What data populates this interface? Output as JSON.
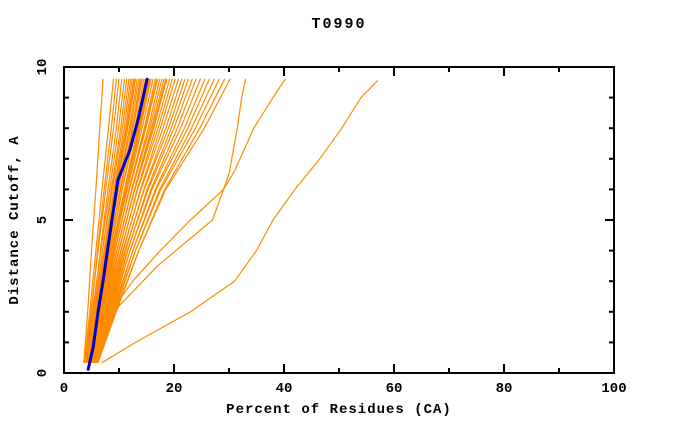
{
  "chart_data": {
    "type": "line",
    "title": "T0990",
    "xlabel": "Percent of Residues (CA)",
    "ylabel": "Distance Cutoff, A",
    "xlim": [
      0,
      100
    ],
    "ylim": [
      0,
      10
    ],
    "xticks": {
      "major": [
        0,
        20,
        40,
        60,
        80,
        100
      ],
      "minor_step": 10
    },
    "yticks": {
      "major": [
        0,
        5,
        10
      ],
      "minor_step": 1
    },
    "grid": false,
    "legend": "none",
    "colors": {
      "models": "#ff8c00",
      "highlight": "#0000cd",
      "axis": "#000000",
      "background": "#ffffff"
    },
    "bundle_y_levels": [
      0.35,
      2,
      4,
      6,
      8,
      9.6
    ],
    "model_curves_x": [
      [
        3.6,
        4.3,
        5.0,
        5.8,
        6.5,
        7.1
      ],
      [
        3.7,
        4.7,
        5.8,
        6.9,
        8.1,
        9.0
      ],
      [
        4.0,
        5.0,
        6.1,
        7.3,
        8.6,
        9.5
      ],
      [
        3.8,
        4.9,
        6.2,
        7.6,
        9.0,
        10.0
      ],
      [
        4.2,
        5.3,
        6.6,
        8.0,
        9.5,
        10.5
      ],
      [
        4.0,
        5.2,
        6.7,
        8.3,
        9.9,
        11.0
      ],
      [
        4.4,
        5.6,
        7.0,
        8.6,
        10.3,
        11.4
      ],
      [
        4.1,
        5.4,
        7.0,
        8.8,
        10.6,
        11.8
      ],
      [
        4.5,
        5.8,
        7.3,
        9.1,
        10.9,
        12.1
      ],
      [
        4.3,
        5.6,
        7.3,
        9.2,
        11.2,
        12.4
      ],
      [
        4.6,
        6.0,
        7.6,
        9.5,
        11.4,
        12.7
      ],
      [
        4.35,
        5.75,
        7.4,
        9.3,
        11.5,
        12.9
      ],
      [
        4.2,
        5.7,
        7.5,
        9.5,
        11.6,
        13.0
      ],
      [
        4.7,
        6.1,
        7.8,
        9.8,
        11.9,
        13.3
      ],
      [
        4.4,
        5.9,
        7.8,
        9.9,
        12.1,
        13.6
      ],
      [
        4.8,
        6.3,
        8.1,
        10.2,
        12.4,
        13.9
      ],
      [
        4.6,
        6.2,
        8.1,
        10.25,
        12.5,
        14.0
      ],
      [
        4.5,
        6.1,
        8.0,
        10.3,
        12.6,
        14.2
      ],
      [
        4.9,
        6.5,
        8.4,
        10.6,
        12.9,
        14.5
      ],
      [
        4.6,
        6.3,
        8.3,
        10.6,
        13.1,
        14.8
      ],
      [
        5.0,
        6.7,
        8.7,
        11.0,
        13.4,
        15.1
      ],
      [
        4.7,
        6.5,
        8.6,
        11.0,
        13.6,
        15.4
      ],
      [
        4.85,
        6.6,
        8.8,
        11.2,
        13.75,
        15.6
      ],
      [
        5.1,
        6.9,
        9.0,
        11.4,
        13.9,
        15.8
      ],
      [
        4.8,
        6.7,
        8.9,
        11.5,
        14.2,
        16.2
      ],
      [
        5.2,
        7.1,
        9.3,
        11.8,
        14.6,
        16.6
      ],
      [
        5.05,
        7.0,
        9.25,
        11.85,
        14.75,
        16.9
      ],
      [
        4.9,
        6.9,
        9.2,
        11.9,
        14.9,
        17.0
      ],
      [
        5.3,
        7.3,
        9.6,
        12.3,
        15.3,
        17.4
      ],
      [
        5.0,
        7.1,
        9.6,
        12.4,
        15.6,
        17.8
      ],
      [
        5.4,
        7.5,
        10.0,
        12.8,
        15.9,
        18.2
      ],
      [
        5.25,
        7.4,
        9.95,
        12.85,
        16.1,
        18.5
      ],
      [
        5.1,
        7.3,
        9.9,
        12.9,
        16.3,
        18.7
      ],
      [
        5.5,
        7.8,
        10.4,
        13.3,
        16.7,
        19.2
      ],
      [
        5.2,
        7.6,
        10.3,
        13.4,
        17.1,
        19.7
      ],
      [
        5.6,
        8.0,
        10.8,
        13.9,
        17.5,
        20.2
      ],
      [
        5.3,
        7.8,
        10.7,
        14.0,
        18.0,
        20.8
      ],
      [
        5.7,
        8.2,
        11.2,
        14.5,
        18.5,
        21.4
      ],
      [
        5.4,
        8.0,
        11.1,
        14.6,
        19.0,
        22.0
      ],
      [
        5.8,
        8.5,
        11.6,
        15.1,
        19.5,
        22.6
      ],
      [
        5.5,
        8.3,
        11.5,
        15.3,
        20.0,
        23.3
      ],
      [
        5.9,
        8.7,
        12.0,
        15.8,
        20.6,
        24.0
      ],
      [
        5.6,
        8.5,
        12.0,
        16.0,
        21.2,
        24.8
      ],
      [
        6.0,
        9.0,
        12.5,
        16.6,
        21.9,
        25.6
      ],
      [
        5.7,
        8.8,
        12.5,
        16.8,
        22.5,
        26.4
      ],
      [
        6.1,
        9.2,
        13.0,
        17.4,
        23.2,
        27.3
      ],
      [
        5.8,
        9.0,
        13.0,
        17.6,
        23.9,
        28.2
      ],
      [
        6.2,
        9.5,
        13.6,
        18.3,
        24.7,
        29.2
      ],
      [
        5.9,
        9.3,
        13.6,
        18.5,
        25.5,
        30.2
      ]
    ],
    "special_curves": [
      {
        "name": "model-outlier-far",
        "y": [
          0.35,
          1,
          2,
          3,
          4,
          5,
          6,
          7,
          8,
          9,
          9.55
        ],
        "x": [
          7,
          13,
          23,
          31,
          35,
          38,
          42,
          46.5,
          50.5,
          54,
          57
        ]
      },
      {
        "name": "model-outlier-mid",
        "y": [
          0.35,
          1,
          2,
          3,
          4,
          5,
          6,
          6.6,
          8,
          9,
          9.6
        ],
        "x": [
          5.5,
          6.5,
          8.5,
          12.5,
          17.5,
          23,
          29,
          31,
          34.5,
          38,
          40.2
        ]
      },
      {
        "name": "model-outlier-knee",
        "y": [
          0.35,
          2,
          3.5,
          5,
          6.5,
          8,
          9,
          9.6
        ],
        "x": [
          5.0,
          9,
          17,
          27,
          30,
          31.5,
          32.3,
          33
        ]
      }
    ],
    "highlight_curve": {
      "name": "best-model",
      "y": [
        0.12,
        0.85,
        2,
        3,
        4.5,
        6.3,
        7.3,
        8.3,
        9.6
      ],
      "x": [
        4.4,
        5.3,
        6.2,
        7.1,
        8.3,
        9.8,
        12.0,
        13.5,
        15.1
      ]
    }
  }
}
